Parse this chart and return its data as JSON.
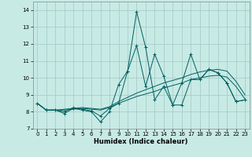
{
  "xlabel": "Humidex (Indice chaleur)",
  "xlim": [
    -0.5,
    23.5
  ],
  "ylim": [
    7,
    14.5
  ],
  "yticks": [
    7,
    8,
    9,
    10,
    11,
    12,
    13,
    14
  ],
  "xticks": [
    0,
    1,
    2,
    3,
    4,
    5,
    6,
    7,
    8,
    9,
    10,
    11,
    12,
    13,
    14,
    15,
    16,
    17,
    18,
    19,
    20,
    21,
    22,
    23
  ],
  "bg_color": "#c8eae5",
  "grid_color": "#a0c8c4",
  "line_color": "#006060",
  "series_smooth1": [
    8.5,
    8.1,
    8.1,
    8.15,
    8.2,
    8.25,
    8.2,
    8.15,
    8.3,
    8.6,
    8.85,
    9.1,
    9.3,
    9.5,
    9.7,
    9.85,
    10.0,
    10.2,
    10.35,
    10.45,
    10.5,
    10.4,
    9.8,
    9.0
  ],
  "series_smooth2": [
    8.5,
    8.1,
    8.1,
    8.1,
    8.15,
    8.2,
    8.15,
    8.1,
    8.25,
    8.5,
    8.7,
    8.9,
    9.05,
    9.2,
    9.4,
    9.55,
    9.7,
    9.9,
    10.0,
    10.1,
    10.15,
    10.05,
    9.5,
    8.75
  ],
  "series_jagged1": [
    8.5,
    8.1,
    8.1,
    7.9,
    8.2,
    8.1,
    8.0,
    7.4,
    8.0,
    9.6,
    10.4,
    13.9,
    11.8,
    8.7,
    9.5,
    8.4,
    8.4,
    9.9,
    9.9,
    10.5,
    10.3,
    9.7,
    8.6,
    8.7
  ],
  "series_jagged2": [
    8.5,
    8.1,
    8.1,
    8.0,
    8.25,
    8.15,
    8.05,
    7.75,
    8.2,
    8.5,
    10.4,
    11.9,
    9.5,
    11.4,
    10.1,
    8.4,
    9.7,
    11.4,
    9.9,
    10.5,
    10.3,
    9.7,
    8.6,
    8.7
  ]
}
